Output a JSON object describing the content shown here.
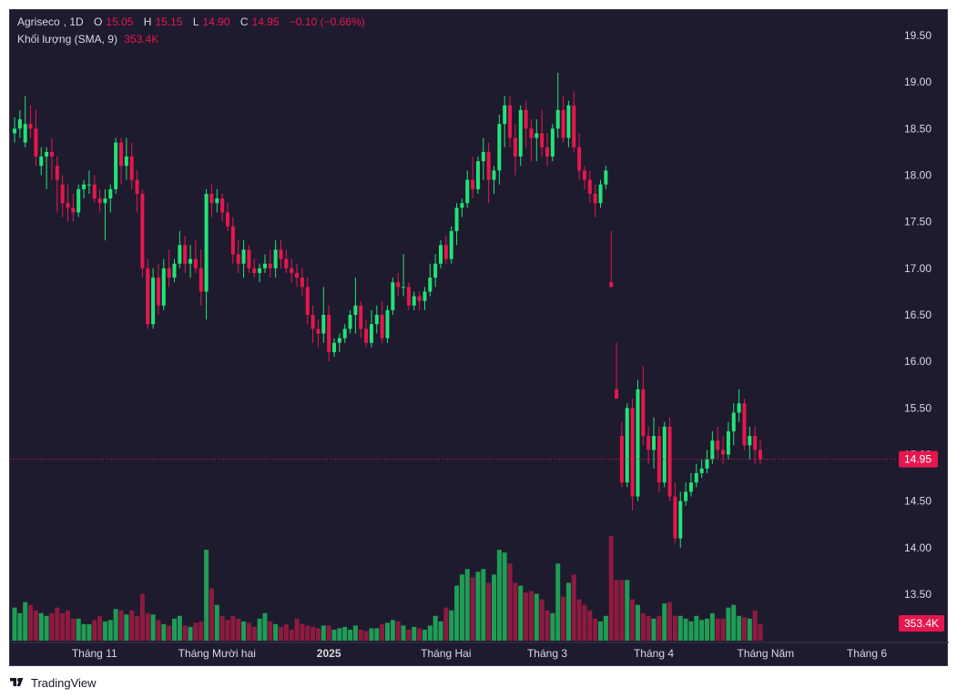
{
  "legend": {
    "symbol": "Agriseco",
    "interval": "1D",
    "o_label": "O",
    "o_value": "15.05",
    "h_label": "H",
    "h_value": "15.15",
    "l_label": "L",
    "l_value": "14.90",
    "c_label": "C",
    "c_value": "14.95",
    "change": "−0.10 (−0.66%)",
    "volume_label": "Khối lượng (SMA, 9)",
    "volume_value": "353.4K"
  },
  "branding": {
    "name": "TradingView",
    "icon": "tradingview-logo-icon"
  },
  "colors": {
    "up": "#22e376",
    "down": "#e5174e",
    "vol_up": "#1f9d55",
    "vol_down": "#8e1a40",
    "background": "#1e1b2e"
  },
  "chart_data": {
    "type": "candlestick",
    "title": "Agriseco, 1D",
    "price_axis": {
      "ticks": [
        "19.50",
        "19.00",
        "18.50",
        "18.00",
        "17.50",
        "17.00",
        "16.50",
        "16.00",
        "15.50",
        "15.00",
        "14.50",
        "14.00",
        "13.50"
      ],
      "range": [
        13.2,
        19.75
      ]
    },
    "time_axis": {
      "labels": [
        {
          "text": "Tháng 11",
          "index": 15
        },
        {
          "text": "Tháng Mười hai",
          "index": 38
        },
        {
          "text": "2025",
          "index": 59
        },
        {
          "text": "Tháng Hai",
          "index": 81
        },
        {
          "text": "Tháng 3",
          "index": 100
        },
        {
          "text": "Tháng 4",
          "index": 120
        },
        {
          "text": "Tháng Năm",
          "index": 141
        },
        {
          "text": "Tháng 6",
          "index": 160
        }
      ]
    },
    "last_price": {
      "value": 14.95,
      "label": "14.95"
    },
    "last_volume": {
      "label": "353.4K"
    },
    "volume_axis_max": 1000,
    "candles": [
      [
        18.45,
        18.62,
        18.35,
        18.5,
        120
      ],
      [
        18.5,
        18.7,
        18.4,
        18.6,
        100
      ],
      [
        18.35,
        18.85,
        18.3,
        18.55,
        140
      ],
      [
        18.55,
        18.75,
        18.4,
        18.5,
        130
      ],
      [
        18.5,
        18.7,
        18.1,
        18.2,
        110
      ],
      [
        18.1,
        18.3,
        18.0,
        18.2,
        100
      ],
      [
        18.2,
        18.3,
        17.85,
        18.25,
        90
      ],
      [
        18.25,
        18.4,
        17.95,
        18.2,
        100
      ],
      [
        18.1,
        18.2,
        17.6,
        17.95,
        120
      ],
      [
        17.9,
        18.0,
        17.55,
        17.7,
        100
      ],
      [
        17.7,
        17.9,
        17.5,
        17.65,
        110
      ],
      [
        17.65,
        17.8,
        17.5,
        17.6,
        80
      ],
      [
        17.6,
        17.9,
        17.55,
        17.85,
        80
      ],
      [
        17.85,
        17.95,
        17.75,
        17.9,
        60
      ],
      [
        17.9,
        18.05,
        17.8,
        17.9,
        60
      ],
      [
        17.9,
        18.0,
        17.7,
        17.75,
        75
      ],
      [
        17.75,
        17.85,
        17.6,
        17.7,
        90
      ],
      [
        17.7,
        17.85,
        17.3,
        17.75,
        70
      ],
      [
        17.75,
        17.9,
        17.6,
        17.85,
        75
      ],
      [
        17.85,
        18.4,
        17.8,
        18.35,
        115
      ],
      [
        18.35,
        18.4,
        17.9,
        18.1,
        110
      ],
      [
        18.1,
        18.4,
        17.95,
        18.2,
        95
      ],
      [
        18.2,
        18.35,
        17.85,
        17.95,
        110
      ],
      [
        17.95,
        18.05,
        17.6,
        17.8,
        90
      ],
      [
        17.8,
        17.85,
        16.9,
        17.0,
        170
      ],
      [
        17.0,
        17.1,
        16.35,
        16.4,
        100
      ],
      [
        16.4,
        17.0,
        16.35,
        16.9,
        95
      ],
      [
        16.9,
        17.05,
        16.5,
        16.6,
        75
      ],
      [
        16.6,
        17.1,
        16.55,
        17.0,
        60
      ],
      [
        17.0,
        17.2,
        16.8,
        16.9,
        55
      ],
      [
        16.9,
        17.1,
        16.85,
        17.05,
        80
      ],
      [
        17.05,
        17.4,
        17.0,
        17.25,
        90
      ],
      [
        17.25,
        17.35,
        16.95,
        17.05,
        55
      ],
      [
        17.05,
        17.25,
        16.9,
        17.1,
        50
      ],
      [
        17.1,
        17.3,
        16.95,
        17.0,
        65
      ],
      [
        17.0,
        17.2,
        16.6,
        16.75,
        70
      ],
      [
        16.75,
        17.85,
        16.45,
        17.8,
        330
      ],
      [
        17.8,
        17.9,
        17.55,
        17.7,
        190
      ],
      [
        17.7,
        17.85,
        17.6,
        17.75,
        130
      ],
      [
        17.75,
        17.8,
        17.5,
        17.6,
        90
      ],
      [
        17.6,
        17.7,
        17.4,
        17.45,
        75
      ],
      [
        17.45,
        17.55,
        17.05,
        17.15,
        90
      ],
      [
        17.15,
        17.3,
        16.95,
        17.05,
        80
      ],
      [
        17.05,
        17.3,
        16.9,
        17.2,
        70
      ],
      [
        17.2,
        17.25,
        16.95,
        17.0,
        65
      ],
      [
        17.0,
        17.1,
        16.9,
        16.95,
        50
      ],
      [
        16.95,
        17.05,
        16.85,
        17.0,
        80
      ],
      [
        17.0,
        17.15,
        16.95,
        17.05,
        100
      ],
      [
        17.05,
        17.2,
        16.9,
        17.0,
        70
      ],
      [
        17.0,
        17.3,
        16.9,
        17.2,
        60
      ],
      [
        17.2,
        17.3,
        17.0,
        17.1,
        50
      ],
      [
        17.1,
        17.2,
        16.95,
        17.0,
        60
      ],
      [
        17.0,
        17.1,
        16.85,
        16.95,
        40
      ],
      [
        16.95,
        17.05,
        16.8,
        16.9,
        80
      ],
      [
        16.9,
        17.0,
        16.7,
        16.8,
        60
      ],
      [
        16.8,
        16.9,
        16.4,
        16.5,
        55
      ],
      [
        16.5,
        16.6,
        16.2,
        16.35,
        50
      ],
      [
        16.35,
        16.45,
        16.15,
        16.3,
        45
      ],
      [
        16.3,
        16.8,
        16.2,
        16.5,
        55
      ],
      [
        16.5,
        16.6,
        16.0,
        16.1,
        55
      ],
      [
        16.1,
        16.25,
        16.05,
        16.2,
        40
      ],
      [
        16.2,
        16.3,
        16.1,
        16.25,
        45
      ],
      [
        16.25,
        16.4,
        16.2,
        16.35,
        50
      ],
      [
        16.35,
        16.55,
        16.3,
        16.5,
        40
      ],
      [
        16.5,
        16.9,
        16.3,
        16.6,
        55
      ],
      [
        16.6,
        16.65,
        16.25,
        16.35,
        40
      ],
      [
        16.35,
        16.45,
        16.15,
        16.2,
        35
      ],
      [
        16.2,
        16.55,
        16.15,
        16.4,
        45
      ],
      [
        16.4,
        16.6,
        16.3,
        16.5,
        45
      ],
      [
        16.5,
        16.65,
        16.2,
        16.25,
        60
      ],
      [
        16.25,
        16.6,
        16.2,
        16.55,
        65
      ],
      [
        16.55,
        16.9,
        16.5,
        16.85,
        75
      ],
      [
        16.85,
        16.95,
        16.7,
        16.8,
        70
      ],
      [
        16.8,
        17.15,
        16.7,
        16.8,
        55
      ],
      [
        16.8,
        16.85,
        16.55,
        16.6,
        40
      ],
      [
        16.6,
        16.75,
        16.55,
        16.7,
        50
      ],
      [
        16.7,
        16.75,
        16.55,
        16.65,
        45
      ],
      [
        16.65,
        16.8,
        16.55,
        16.75,
        40
      ],
      [
        16.75,
        17.05,
        16.7,
        16.9,
        55
      ],
      [
        16.9,
        17.15,
        16.8,
        17.05,
        90
      ],
      [
        17.05,
        17.3,
        17.0,
        17.25,
        70
      ],
      [
        17.25,
        17.35,
        17.05,
        17.1,
        120
      ],
      [
        17.1,
        17.45,
        17.05,
        17.4,
        110
      ],
      [
        17.4,
        17.7,
        17.25,
        17.65,
        200
      ],
      [
        17.65,
        17.75,
        17.55,
        17.7,
        240
      ],
      [
        17.7,
        18.05,
        17.65,
        17.95,
        260
      ],
      [
        17.95,
        18.2,
        17.75,
        17.85,
        230
      ],
      [
        17.85,
        18.2,
        17.8,
        18.15,
        250
      ],
      [
        18.15,
        18.4,
        17.95,
        18.25,
        260
      ],
      [
        18.25,
        18.35,
        17.7,
        17.95,
        210
      ],
      [
        17.95,
        18.1,
        17.8,
        18.05,
        240
      ],
      [
        18.05,
        18.65,
        17.9,
        18.55,
        330
      ],
      [
        18.55,
        18.85,
        18.3,
        18.75,
        320
      ],
      [
        18.75,
        18.85,
        18.3,
        18.4,
        280
      ],
      [
        18.4,
        18.55,
        18.0,
        18.2,
        210
      ],
      [
        18.2,
        18.75,
        18.1,
        18.7,
        200
      ],
      [
        18.7,
        18.8,
        18.3,
        18.5,
        175
      ],
      [
        18.5,
        18.6,
        18.15,
        18.4,
        180
      ],
      [
        18.4,
        18.6,
        18.15,
        18.45,
        170
      ],
      [
        18.45,
        18.7,
        18.2,
        18.3,
        150
      ],
      [
        18.3,
        18.45,
        18.1,
        18.2,
        110
      ],
      [
        18.2,
        18.55,
        18.15,
        18.5,
        100
      ],
      [
        18.5,
        19.1,
        18.4,
        18.7,
        280
      ],
      [
        18.7,
        18.85,
        18.35,
        18.4,
        160
      ],
      [
        18.4,
        18.8,
        18.3,
        18.75,
        210
      ],
      [
        18.75,
        18.9,
        18.25,
        18.3,
        240
      ],
      [
        18.3,
        18.45,
        17.95,
        18.05,
        150
      ],
      [
        18.05,
        18.1,
        17.85,
        17.95,
        130
      ],
      [
        17.95,
        18.05,
        17.7,
        17.8,
        110
      ],
      [
        17.8,
        17.9,
        17.55,
        17.7,
        80
      ],
      [
        17.7,
        17.95,
        17.65,
        17.9,
        70
      ],
      [
        17.9,
        18.1,
        17.85,
        18.05,
        90
      ],
      [
        16.85,
        17.4,
        16.8,
        16.8,
        380
      ],
      [
        15.7,
        16.2,
        15.6,
        15.6,
        220
      ],
      [
        15.2,
        15.35,
        14.65,
        14.7,
        220
      ],
      [
        14.7,
        15.55,
        14.65,
        15.5,
        220
      ],
      [
        15.5,
        15.6,
        14.4,
        14.55,
        150
      ],
      [
        14.55,
        15.8,
        14.5,
        15.7,
        130
      ],
      [
        15.7,
        15.95,
        15.1,
        15.2,
        100
      ],
      [
        15.2,
        15.3,
        14.9,
        15.05,
        90
      ],
      [
        15.05,
        15.4,
        14.85,
        15.2,
        80
      ],
      [
        15.2,
        15.3,
        14.6,
        14.7,
        90
      ],
      [
        14.7,
        15.35,
        14.65,
        15.3,
        135
      ],
      [
        15.3,
        15.4,
        14.5,
        14.55,
        140
      ],
      [
        14.55,
        14.7,
        14.05,
        14.1,
        90
      ],
      [
        14.1,
        14.6,
        14.0,
        14.5,
        90
      ],
      [
        14.5,
        14.7,
        14.45,
        14.6,
        80
      ],
      [
        14.6,
        14.8,
        14.55,
        14.7,
        70
      ],
      [
        14.7,
        14.9,
        14.65,
        14.8,
        90
      ],
      [
        14.8,
        14.95,
        14.75,
        14.85,
        75
      ],
      [
        14.85,
        15.05,
        14.8,
        14.95,
        80
      ],
      [
        14.95,
        15.25,
        14.9,
        15.15,
        100
      ],
      [
        15.15,
        15.3,
        14.95,
        15.05,
        80
      ],
      [
        15.05,
        15.2,
        14.9,
        15.0,
        80
      ],
      [
        15.0,
        15.35,
        14.95,
        15.25,
        120
      ],
      [
        15.25,
        15.55,
        15.1,
        15.45,
        130
      ],
      [
        15.45,
        15.7,
        15.35,
        15.55,
        90
      ],
      [
        15.55,
        15.6,
        15.05,
        15.1,
        85
      ],
      [
        15.1,
        15.3,
        14.95,
        15.2,
        80
      ],
      [
        15.2,
        15.3,
        14.9,
        15.05,
        110
      ],
      [
        15.05,
        15.15,
        14.9,
        14.95,
        60
      ]
    ]
  }
}
